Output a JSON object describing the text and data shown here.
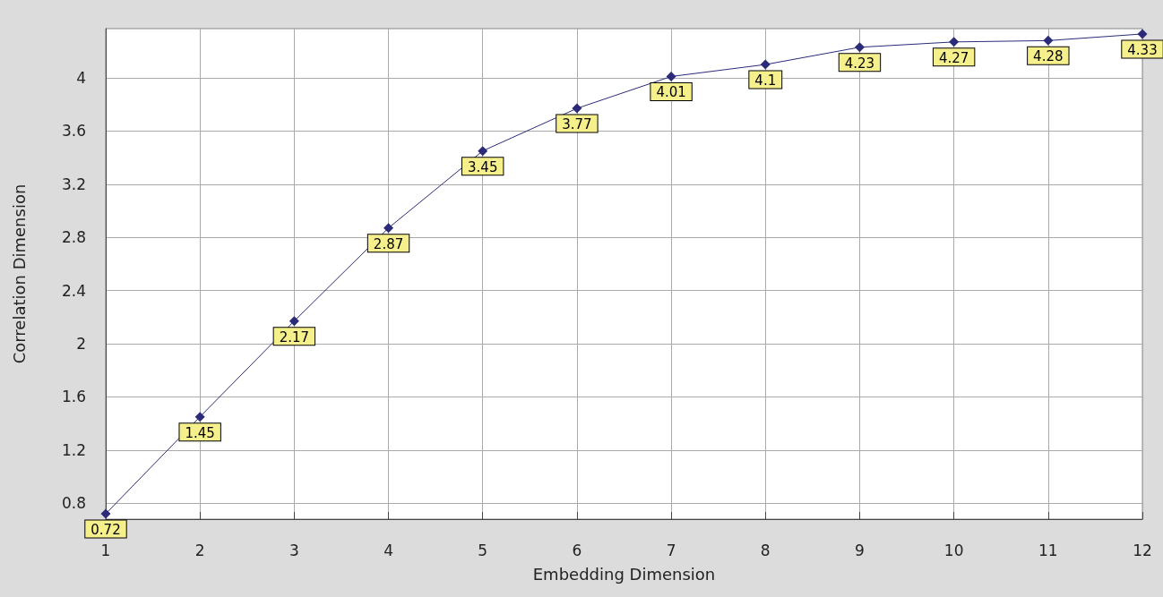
{
  "chart_data": {
    "type": "line",
    "xlabel": "Embedding Dimension",
    "ylabel": "Correlation Dimension",
    "x": [
      1,
      2,
      3,
      4,
      5,
      6,
      7,
      8,
      9,
      10,
      11,
      12
    ],
    "series": [
      {
        "color": "#2b2b7a",
        "values": [
          0.72,
          1.45,
          2.17,
          2.87,
          3.45,
          3.77,
          4.01,
          4.1,
          4.23,
          4.27,
          4.28,
          4.33
        ]
      }
    ],
    "xlim": [
      1,
      12
    ],
    "xticks": [
      1,
      2,
      3,
      4,
      5,
      6,
      7,
      8,
      9,
      10,
      11,
      12
    ],
    "ylim": [
      0.68,
      4.37
    ],
    "yticks": [
      0.8,
      1.2,
      1.6,
      2,
      2.4,
      2.8,
      3.2,
      3.6,
      4
    ],
    "grid": true,
    "marker": "diamond",
    "line_style": "solid",
    "data_labels": true
  }
}
